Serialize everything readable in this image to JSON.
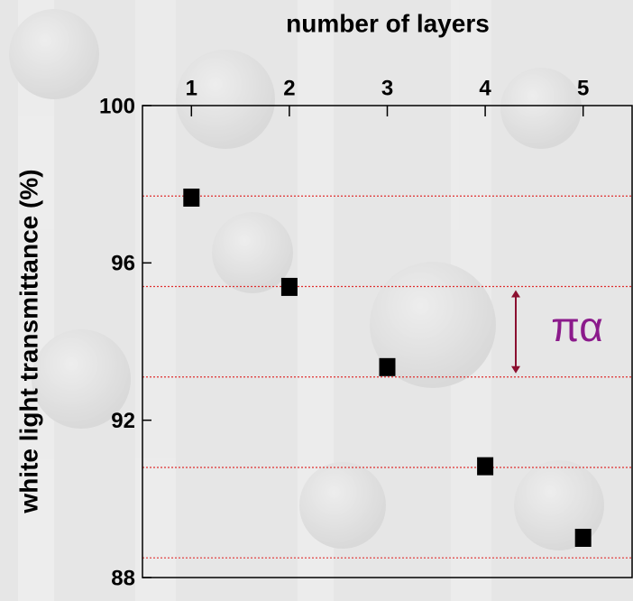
{
  "chart_data": {
    "type": "scatter",
    "title": "number of layers",
    "y_label": "white light transmittance  (%)",
    "x": [
      1,
      2,
      3,
      4,
      5
    ],
    "series": [
      {
        "color": "#000000",
        "values": [
          97.66,
          95.39,
          93.35,
          90.83,
          89.01
        ]
      }
    ],
    "reference_lines": {
      "color": "#e03030",
      "values": [
        97.7,
        95.4,
        93.1,
        90.8,
        88.5
      ]
    },
    "annotation": {
      "text": "πα",
      "color": "#8b1a8b",
      "arrow_color": "#8b1030"
    },
    "xlim": [
      0.5,
      5.5
    ],
    "xticks": [
      1,
      2,
      3,
      4,
      5
    ],
    "ylim": [
      88,
      100
    ],
    "yticks": [
      88,
      92,
      96,
      100
    ]
  }
}
